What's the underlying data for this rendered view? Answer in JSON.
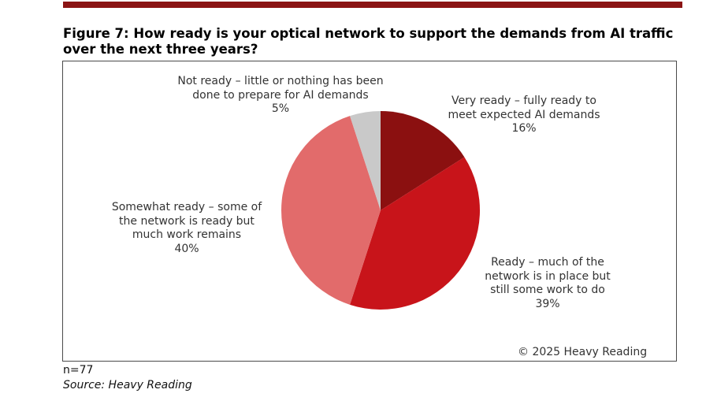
{
  "title": "Figure 7: How ready is your optical network to support the demands from AI traffic over the next three years?",
  "copyright": "© 2025 Heavy Reading",
  "n_note": "n=77",
  "source": "Source: Heavy Reading",
  "colors": {
    "rule": "#8b1414"
  },
  "chart_data": {
    "type": "pie",
    "title": "Figure 7: How ready is your optical network to support the demands from AI traffic over the next three years?",
    "slices": [
      {
        "label_lines": [
          "Very ready – fully ready to",
          "meet expected AI demands"
        ],
        "value": 16,
        "value_label": "16%",
        "color": "#8b1010"
      },
      {
        "label_lines": [
          "Ready – much of the",
          "network is in place but",
          "still some work to do"
        ],
        "value": 39,
        "value_label": "39%",
        "color": "#c8141a"
      },
      {
        "label_lines": [
          "Somewhat ready – some of",
          "the network is ready but",
          "much work remains"
        ],
        "value": 40,
        "value_label": "40%",
        "color": "#e26b6b"
      },
      {
        "label_lines": [
          "Not ready – little or nothing has been",
          "done to prepare for AI demands"
        ],
        "value": 5,
        "value_label": "5%",
        "color": "#c9c9c9"
      }
    ]
  }
}
